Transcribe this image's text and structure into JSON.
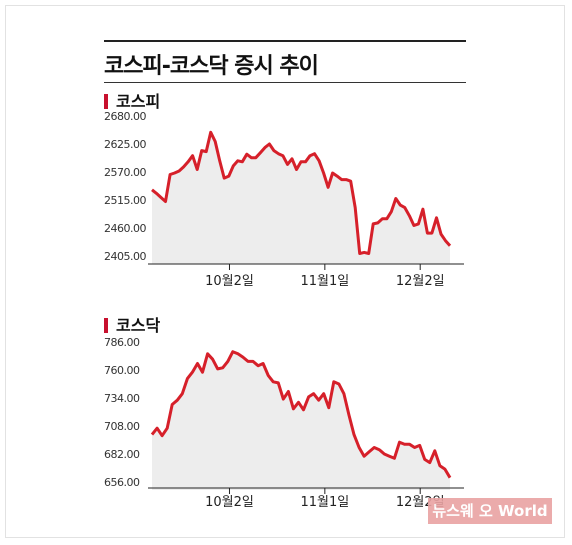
{
  "title": "코스피-코스닥 증시 추이",
  "watermark_text": "뉴스웨 오 World",
  "colors": {
    "line": "#d6202a",
    "area": "#ededed",
    "accent": "#c8102e"
  },
  "chart_data": [
    {
      "type": "area",
      "name": "코스피",
      "title": "코스피",
      "y_ticks": [
        "2680.00",
        "2625.00",
        "2570.00",
        "2515.00",
        "2460.00",
        "2405.00"
      ],
      "x_ticks": [
        "10월2일",
        "11월1일",
        "12월2일"
      ],
      "ylim": [
        2405,
        2680
      ],
      "values": [
        2535,
        2528,
        2520,
        2512,
        2565,
        2568,
        2572,
        2580,
        2590,
        2602,
        2575,
        2612,
        2610,
        2648,
        2630,
        2592,
        2558,
        2562,
        2582,
        2592,
        2590,
        2605,
        2598,
        2598,
        2608,
        2618,
        2625,
        2612,
        2606,
        2602,
        2585,
        2596,
        2575,
        2590,
        2590,
        2602,
        2606,
        2592,
        2568,
        2540,
        2568,
        2562,
        2555,
        2555,
        2552,
        2500,
        2410,
        2412,
        2410,
        2468,
        2470,
        2478,
        2478,
        2492,
        2518,
        2505,
        2500,
        2484,
        2465,
        2468,
        2497,
        2450,
        2450,
        2480,
        2448,
        2435,
        2425
      ]
    },
    {
      "type": "area",
      "name": "코스닥",
      "title": "코스닥",
      "y_ticks": [
        "786.00",
        "760.00",
        "734.00",
        "708.00",
        "682.00",
        "656.00"
      ],
      "x_ticks": [
        "10월2일",
        "11월1일",
        "12월2일"
      ],
      "ylim": [
        656,
        786
      ],
      "values": [
        700,
        706,
        699,
        706,
        728,
        732,
        738,
        752,
        758,
        766,
        758,
        775,
        770,
        761,
        762,
        768,
        777,
        775,
        772,
        768,
        768,
        764,
        766,
        755,
        749,
        748,
        733,
        740,
        724,
        730,
        723,
        735,
        738,
        732,
        738,
        725,
        749,
        747,
        738,
        718,
        700,
        688,
        680,
        684,
        688,
        686,
        682,
        680,
        678,
        693,
        691,
        691,
        688,
        690,
        677,
        674,
        685,
        671,
        668,
        660
      ]
    }
  ]
}
